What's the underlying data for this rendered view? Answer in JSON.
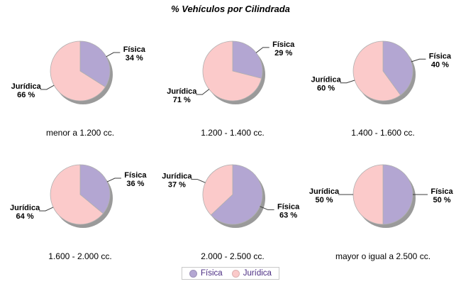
{
  "title": "% Vehículos por Cilindrada",
  "layout": {
    "grid": "2 rows x 3 columns of pie charts",
    "legend_position": "bottom-center"
  },
  "colors": {
    "fisica": "#b3a6d2",
    "juridica": "#fbcaca",
    "by_label": {
      "Física": "#b3a6d2",
      "Jurídica": "#fbcaca"
    },
    "shadow": "#9a9a9a",
    "slice_stroke": "#b0b0b0",
    "leader": "#3c3c3c",
    "legend_text": "#4b2d83",
    "legend_border": "#c9c9c9",
    "background": "#ffffff"
  },
  "legend": {
    "items": [
      {
        "label": "Física",
        "color": "#b3a6d2"
      },
      {
        "label": "Jurídica",
        "color": "#fbcaca"
      }
    ]
  },
  "chart_data": [
    {
      "type": "pie",
      "category": "menor a 1.200 cc.",
      "slices": [
        {
          "label": "Física",
          "value": 34,
          "display": "34 %"
        },
        {
          "label": "Jurídica",
          "value": 66,
          "display": "66 %"
        }
      ]
    },
    {
      "type": "pie",
      "category": "1.200 - 1.400 cc.",
      "slices": [
        {
          "label": "Física",
          "value": 29,
          "display": "29 %"
        },
        {
          "label": "Jurídica",
          "value": 71,
          "display": "71 %"
        }
      ]
    },
    {
      "type": "pie",
      "category": "1.400 - 1.600 cc.",
      "slices": [
        {
          "label": "Física",
          "value": 40,
          "display": "40 %"
        },
        {
          "label": "Jurídica",
          "value": 60,
          "display": "60 %"
        }
      ]
    },
    {
      "type": "pie",
      "category": "1.600 - 2.000 cc.",
      "slices": [
        {
          "label": "Física",
          "value": 36,
          "display": "36 %"
        },
        {
          "label": "Jurídica",
          "value": 64,
          "display": "64 %"
        }
      ]
    },
    {
      "type": "pie",
      "category": "2.000 - 2.500 cc.",
      "slices": [
        {
          "label": "Física",
          "value": 63,
          "display": "63 %"
        },
        {
          "label": "Jurídica",
          "value": 37,
          "display": "37 %"
        }
      ]
    },
    {
      "type": "pie",
      "category": "mayor o igual a 2.500 cc.",
      "slices": [
        {
          "label": "Física",
          "value": 50,
          "display": "50 %"
        },
        {
          "label": "Jurídica",
          "value": 50,
          "display": "50 %"
        }
      ]
    }
  ]
}
